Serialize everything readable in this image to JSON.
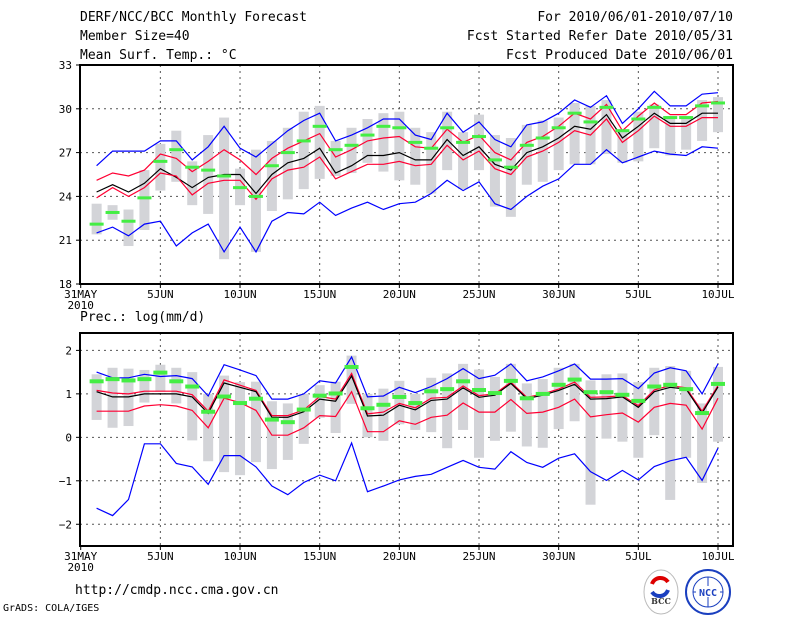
{
  "header": {
    "title": "DERF/NCC/BCC Monthly Forecast",
    "member_size": "Member Size=40",
    "variable": "Mean Surf. Temp.: °C",
    "period": "For 2010/06/01-2010/07/10",
    "started": "Fcst Started Refer Date 2010/05/31",
    "produced": "Fcst Produced Date 2010/06/01"
  },
  "footer": {
    "url": "http://cmdp.ncc.cma.gov.cn",
    "grads": "GrADS: COLA/IGES",
    "logo_bcc": "BCC",
    "logo_ncc": "NCC"
  },
  "colors": {
    "max_min": "#0000ff",
    "spread": "#ff0033",
    "mean": "#000000",
    "obs": "#44ee44",
    "range": "#d3d4d8"
  },
  "chart_data": [
    {
      "type": "line",
      "title": "Mean Surf. Temp.: °C",
      "xlabel": "",
      "ylabel": "",
      "x_ticks": [
        0,
        5,
        10,
        15,
        20,
        25,
        30,
        35,
        40
      ],
      "x_tick_labels": [
        "31MAY",
        "5JUN",
        "10JUN",
        "15JUN",
        "20JUN",
        "25JUN",
        "30JUN",
        "5JUL",
        "10JUL"
      ],
      "x_year_label": "2010",
      "y_ticks": [
        18,
        21,
        24,
        27,
        30,
        33
      ],
      "y_tick_labels": [
        "18",
        "21",
        "24",
        "27",
        "30",
        "33"
      ],
      "xlim": [
        0,
        41
      ],
      "ylim": [
        18,
        33
      ],
      "grid": true,
      "x": [
        1,
        2,
        3,
        4,
        5,
        6,
        7,
        8,
        9,
        10,
        11,
        12,
        13,
        14,
        15,
        16,
        17,
        18,
        19,
        20,
        21,
        22,
        23,
        24,
        25,
        26,
        27,
        28,
        29,
        30,
        31,
        32,
        33,
        34,
        35,
        36,
        37,
        38,
        39,
        40
      ],
      "series": [
        {
          "name": "max",
          "kind": "line",
          "color": "#0000ff",
          "values": [
            26.1,
            27.1,
            27.1,
            27.1,
            27.8,
            27.8,
            26.5,
            27.4,
            28.8,
            27.3,
            26.7,
            27.6,
            28.5,
            29.2,
            29.7,
            27.8,
            28.2,
            28.7,
            29.3,
            29.3,
            28.2,
            27.9,
            29.7,
            28.4,
            29.1,
            27.9,
            27.4,
            28.9,
            29.1,
            29.7,
            30.6,
            30.1,
            30.9,
            29.0,
            30.0,
            31.2,
            30.2,
            30.2,
            31.0,
            31.1
          ]
        },
        {
          "name": "upper",
          "kind": "line",
          "color": "#ff0033",
          "values": [
            25.1,
            25.6,
            25.4,
            25.8,
            26.9,
            26.6,
            25.7,
            26.4,
            27.2,
            26.5,
            25.5,
            26.6,
            27.3,
            27.8,
            28.3,
            26.7,
            27.2,
            27.8,
            28.0,
            28.1,
            27.4,
            27.3,
            28.6,
            27.7,
            28.2,
            27.0,
            26.5,
            27.7,
            28.1,
            28.8,
            29.7,
            29.3,
            30.3,
            28.5,
            29.5,
            30.4,
            29.6,
            29.6,
            30.4,
            30.5
          ]
        },
        {
          "name": "mean",
          "kind": "line",
          "color": "#000000",
          "values": [
            24.3,
            24.8,
            24.3,
            24.9,
            25.9,
            25.3,
            24.6,
            25.3,
            25.5,
            25.5,
            24.2,
            25.5,
            26.3,
            26.6,
            27.3,
            25.6,
            26.1,
            26.8,
            26.8,
            27.0,
            26.5,
            26.5,
            27.9,
            26.8,
            27.4,
            26.2,
            25.8,
            27.0,
            27.4,
            28.0,
            28.8,
            28.6,
            29.6,
            28.0,
            28.8,
            29.7,
            29.0,
            29.0,
            29.7,
            29.7
          ]
        },
        {
          "name": "lower",
          "kind": "line",
          "color": "#ff0033",
          "values": [
            23.9,
            24.6,
            24.0,
            24.6,
            25.6,
            25.4,
            24.1,
            24.9,
            25.1,
            25.1,
            23.8,
            25.2,
            25.8,
            26.0,
            26.7,
            25.2,
            25.7,
            26.2,
            26.2,
            26.4,
            26.1,
            26.2,
            27.5,
            26.5,
            27.1,
            25.9,
            25.5,
            26.7,
            27.1,
            27.7,
            28.5,
            28.2,
            29.3,
            27.7,
            28.5,
            29.5,
            28.8,
            28.8,
            29.4,
            29.4
          ]
        },
        {
          "name": "min",
          "kind": "line",
          "color": "#0000ff",
          "values": [
            21.5,
            21.9,
            21.3,
            22.1,
            22.3,
            20.6,
            21.5,
            22.1,
            20.2,
            21.9,
            20.2,
            22.3,
            22.9,
            22.8,
            23.6,
            22.7,
            23.2,
            23.6,
            23.1,
            23.5,
            23.6,
            24.2,
            25.1,
            24.4,
            25.0,
            23.5,
            23.1,
            24.0,
            24.7,
            25.2,
            26.2,
            26.2,
            27.2,
            26.3,
            26.7,
            27.1,
            26.9,
            26.8,
            27.4,
            27.3
          ]
        },
        {
          "name": "observed",
          "kind": "tick",
          "color": "#44ee44",
          "values": [
            22.1,
            22.9,
            22.3,
            23.9,
            26.4,
            27.2,
            26.0,
            25.8,
            25.4,
            24.6,
            24.0,
            26.1,
            27.0,
            27.8,
            28.8,
            27.2,
            27.5,
            28.2,
            28.8,
            28.7,
            27.7,
            27.3,
            28.7,
            27.7,
            28.1,
            26.5,
            26.0,
            27.5,
            28.0,
            28.7,
            29.7,
            29.1,
            30.1,
            28.5,
            29.3,
            30.1,
            29.4,
            29.4,
            30.2,
            30.4
          ]
        }
      ],
      "ensemble_range_low": [
        21.4,
        22.4,
        20.6,
        21.7,
        24.4,
        25.0,
        23.4,
        22.8,
        19.7,
        23.4,
        20.2,
        23.0,
        23.8,
        24.5,
        25.2,
        25.4,
        25.6,
        26.3,
        25.7,
        25.1,
        24.8,
        24.2,
        25.8,
        24.5,
        25.8,
        23.3,
        22.6,
        24.8,
        25.0,
        25.8,
        26.2,
        26.2,
        26.9,
        26.3,
        26.4,
        27.3,
        26.8,
        27.2,
        27.8,
        28.4
      ],
      "ensemble_range_high": [
        23.5,
        23.4,
        23.1,
        25.8,
        27.6,
        28.5,
        26.4,
        28.2,
        29.4,
        25.9,
        27.2,
        27.8,
        28.7,
        29.8,
        30.2,
        27.8,
        28.7,
        29.3,
        29.7,
        29.8,
        28.7,
        28.4,
        29.8,
        28.4,
        29.6,
        28.2,
        28.0,
        28.9,
        29.2,
        29.4,
        30.4,
        30.2,
        30.6,
        28.6,
        29.8,
        30.3,
        29.5,
        29.5,
        30.6,
        30.8
      ]
    },
    {
      "type": "line",
      "title": "Prec.: log(mm/d)",
      "xlabel": "",
      "ylabel": "",
      "x_ticks": [
        0,
        5,
        10,
        15,
        20,
        25,
        30,
        35,
        40
      ],
      "x_tick_labels": [
        "31MAY",
        "5JUN",
        "10JUN",
        "15JUN",
        "20JUN",
        "25JUN",
        "30JUN",
        "5JUL",
        "10JUL"
      ],
      "x_year_label": "2010",
      "y_ticks": [
        -2,
        -1,
        0,
        1,
        2
      ],
      "y_tick_labels": [
        "−2",
        "−1",
        "0",
        "1",
        "2"
      ],
      "xlim": [
        0,
        41
      ],
      "ylim": [
        -2.5,
        2.4
      ],
      "grid": true,
      "x": [
        1,
        2,
        3,
        4,
        5,
        6,
        7,
        8,
        9,
        10,
        11,
        12,
        13,
        14,
        15,
        16,
        17,
        18,
        19,
        20,
        21,
        22,
        23,
        24,
        25,
        26,
        27,
        28,
        29,
        30,
        31,
        32,
        33,
        34,
        35,
        36,
        37,
        38,
        39,
        40
      ],
      "series": [
        {
          "name": "max",
          "kind": "line",
          "color": "#0000ff",
          "values": [
            1.5,
            1.37,
            1.37,
            1.45,
            1.4,
            1.42,
            1.35,
            0.95,
            1.67,
            1.55,
            1.42,
            0.88,
            0.88,
            1.0,
            1.3,
            1.25,
            1.85,
            0.93,
            0.95,
            1.15,
            1.03,
            1.17,
            1.35,
            1.58,
            1.35,
            1.43,
            1.69,
            1.3,
            1.39,
            1.53,
            1.69,
            1.34,
            1.34,
            1.35,
            1.12,
            1.48,
            1.6,
            1.53,
            1.0,
            1.69
          ]
        },
        {
          "name": "upper",
          "kind": "line",
          "color": "#ff0033",
          "values": [
            1.08,
            1.02,
            1.0,
            1.06,
            1.06,
            1.06,
            0.98,
            0.6,
            1.32,
            1.2,
            1.08,
            0.5,
            0.5,
            0.63,
            0.94,
            0.88,
            1.47,
            0.54,
            0.58,
            0.78,
            0.68,
            0.9,
            0.92,
            1.18,
            0.96,
            1.0,
            1.27,
            0.92,
            1.0,
            1.11,
            1.27,
            0.92,
            0.93,
            0.96,
            0.73,
            1.09,
            1.19,
            1.14,
            0.6,
            1.19
          ]
        },
        {
          "name": "mean",
          "kind": "line",
          "color": "#000000",
          "values": [
            1.05,
            0.93,
            0.93,
            1.0,
            1.0,
            1.0,
            0.93,
            0.55,
            1.25,
            1.15,
            1.05,
            0.46,
            0.46,
            0.59,
            0.88,
            0.83,
            1.41,
            0.49,
            0.51,
            0.74,
            0.63,
            0.85,
            0.88,
            1.14,
            0.92,
            0.97,
            1.24,
            0.89,
            0.97,
            1.08,
            1.22,
            0.88,
            0.89,
            0.93,
            0.69,
            1.05,
            1.15,
            1.11,
            0.56,
            1.16
          ]
        },
        {
          "name": "lower",
          "kind": "line",
          "color": "#ff0033",
          "values": [
            0.6,
            0.6,
            0.6,
            0.72,
            0.75,
            0.72,
            0.62,
            0.22,
            0.9,
            0.8,
            0.62,
            0.05,
            0.05,
            0.22,
            0.5,
            0.48,
            1.05,
            0.13,
            0.13,
            0.38,
            0.3,
            0.46,
            0.51,
            0.79,
            0.58,
            0.58,
            0.87,
            0.55,
            0.58,
            0.69,
            0.88,
            0.47,
            0.52,
            0.56,
            0.35,
            0.69,
            0.78,
            0.74,
            0.19,
            0.9
          ]
        },
        {
          "name": "min",
          "kind": "line",
          "color": "#0000ff",
          "values": [
            -1.63,
            -1.8,
            -1.43,
            -0.15,
            -0.15,
            -0.6,
            -0.68,
            -1.08,
            -0.42,
            -0.42,
            -0.68,
            -1.12,
            -1.32,
            -1.04,
            -0.87,
            -1.0,
            -0.13,
            -1.25,
            -1.12,
            -0.98,
            -0.9,
            -0.85,
            -0.69,
            -0.53,
            -0.69,
            -0.73,
            -0.33,
            -0.58,
            -0.69,
            -0.48,
            -0.38,
            -0.79,
            -0.99,
            -0.76,
            -0.98,
            -0.67,
            -0.54,
            -0.46,
            -0.99,
            -0.25
          ]
        },
        {
          "name": "observed",
          "kind": "tick",
          "color": "#44ee44",
          "values": [
            1.3,
            1.35,
            1.32,
            1.35,
            1.5,
            1.3,
            1.18,
            0.6,
            0.95,
            0.8,
            0.9,
            0.42,
            0.36,
            0.65,
            0.97,
            1.02,
            1.63,
            0.68,
            0.76,
            0.94,
            0.8,
            1.07,
            1.12,
            1.3,
            1.1,
            1.03,
            1.31,
            0.91,
            1.01,
            1.22,
            1.34,
            1.05,
            1.05,
            0.99,
            0.85,
            1.18,
            1.22,
            1.12,
            0.57,
            1.24
          ]
        }
      ],
      "ensemble_range_low": [
        0.4,
        0.22,
        0.26,
        0.8,
        1.05,
        0.78,
        -0.07,
        -0.55,
        -0.8,
        -0.87,
        -0.57,
        -0.73,
        -0.52,
        -0.15,
        0.45,
        0.1,
        0.77,
        0.0,
        -0.08,
        0.3,
        0.17,
        0.12,
        -0.25,
        0.17,
        -0.47,
        -0.08,
        0.13,
        -0.21,
        -0.24,
        0.19,
        0.37,
        -1.55,
        -0.03,
        -0.1,
        -0.47,
        0.05,
        -1.44,
        -0.47,
        -1.05,
        -0.1
      ],
      "ensemble_range_high": [
        1.45,
        1.6,
        1.58,
        1.55,
        1.67,
        1.6,
        1.5,
        1.0,
        1.42,
        1.27,
        1.28,
        0.83,
        0.78,
        1.0,
        1.2,
        1.28,
        1.88,
        1.0,
        1.12,
        1.3,
        1.0,
        1.37,
        1.47,
        1.69,
        1.56,
        1.39,
        1.69,
        1.24,
        1.34,
        1.6,
        1.69,
        1.31,
        1.45,
        1.47,
        1.27,
        1.6,
        1.64,
        1.53,
        0.78,
        1.62
      ]
    }
  ]
}
